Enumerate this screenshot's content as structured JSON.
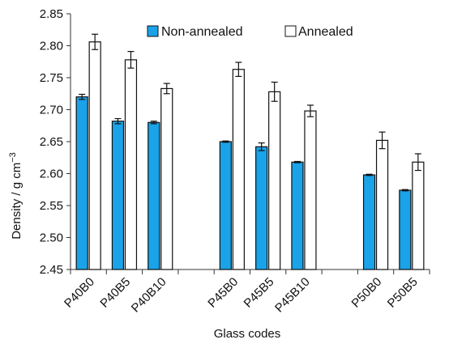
{
  "chart_data": {
    "type": "bar",
    "title": "",
    "xlabel": "Glass codes",
    "ylabel": "Density / g cm",
    "ylabel_superscript": "−3",
    "ylim": [
      2.45,
      2.85
    ],
    "yticks": [
      "2.45",
      "2.50",
      "2.55",
      "2.60",
      "2.65",
      "2.70",
      "2.75",
      "2.80",
      "2.85"
    ],
    "grid": false,
    "legend_position": "top",
    "categories": [
      "P40B0",
      "P40B5",
      "P40B10",
      "",
      "P45B0",
      "P45B5",
      "P45B10",
      "",
      "P50B0",
      "P50B5"
    ],
    "series": [
      {
        "name": "Non-annealed",
        "color": "#1aa3e8",
        "values": [
          2.72,
          2.682,
          2.68,
          null,
          2.65,
          2.642,
          2.618,
          null,
          2.598,
          2.574
        ],
        "errors": [
          0.004,
          0.004,
          0.002,
          null,
          0.001,
          0.006,
          0.001,
          null,
          0.001,
          0.001
        ]
      },
      {
        "name": "Annealed",
        "color": "#ffffff",
        "values": [
          2.806,
          2.778,
          2.733,
          null,
          2.763,
          2.728,
          2.698,
          null,
          2.652,
          2.618
        ],
        "errors": [
          0.012,
          0.013,
          0.008,
          null,
          0.011,
          0.015,
          0.009,
          null,
          0.013,
          0.013
        ]
      }
    ]
  }
}
